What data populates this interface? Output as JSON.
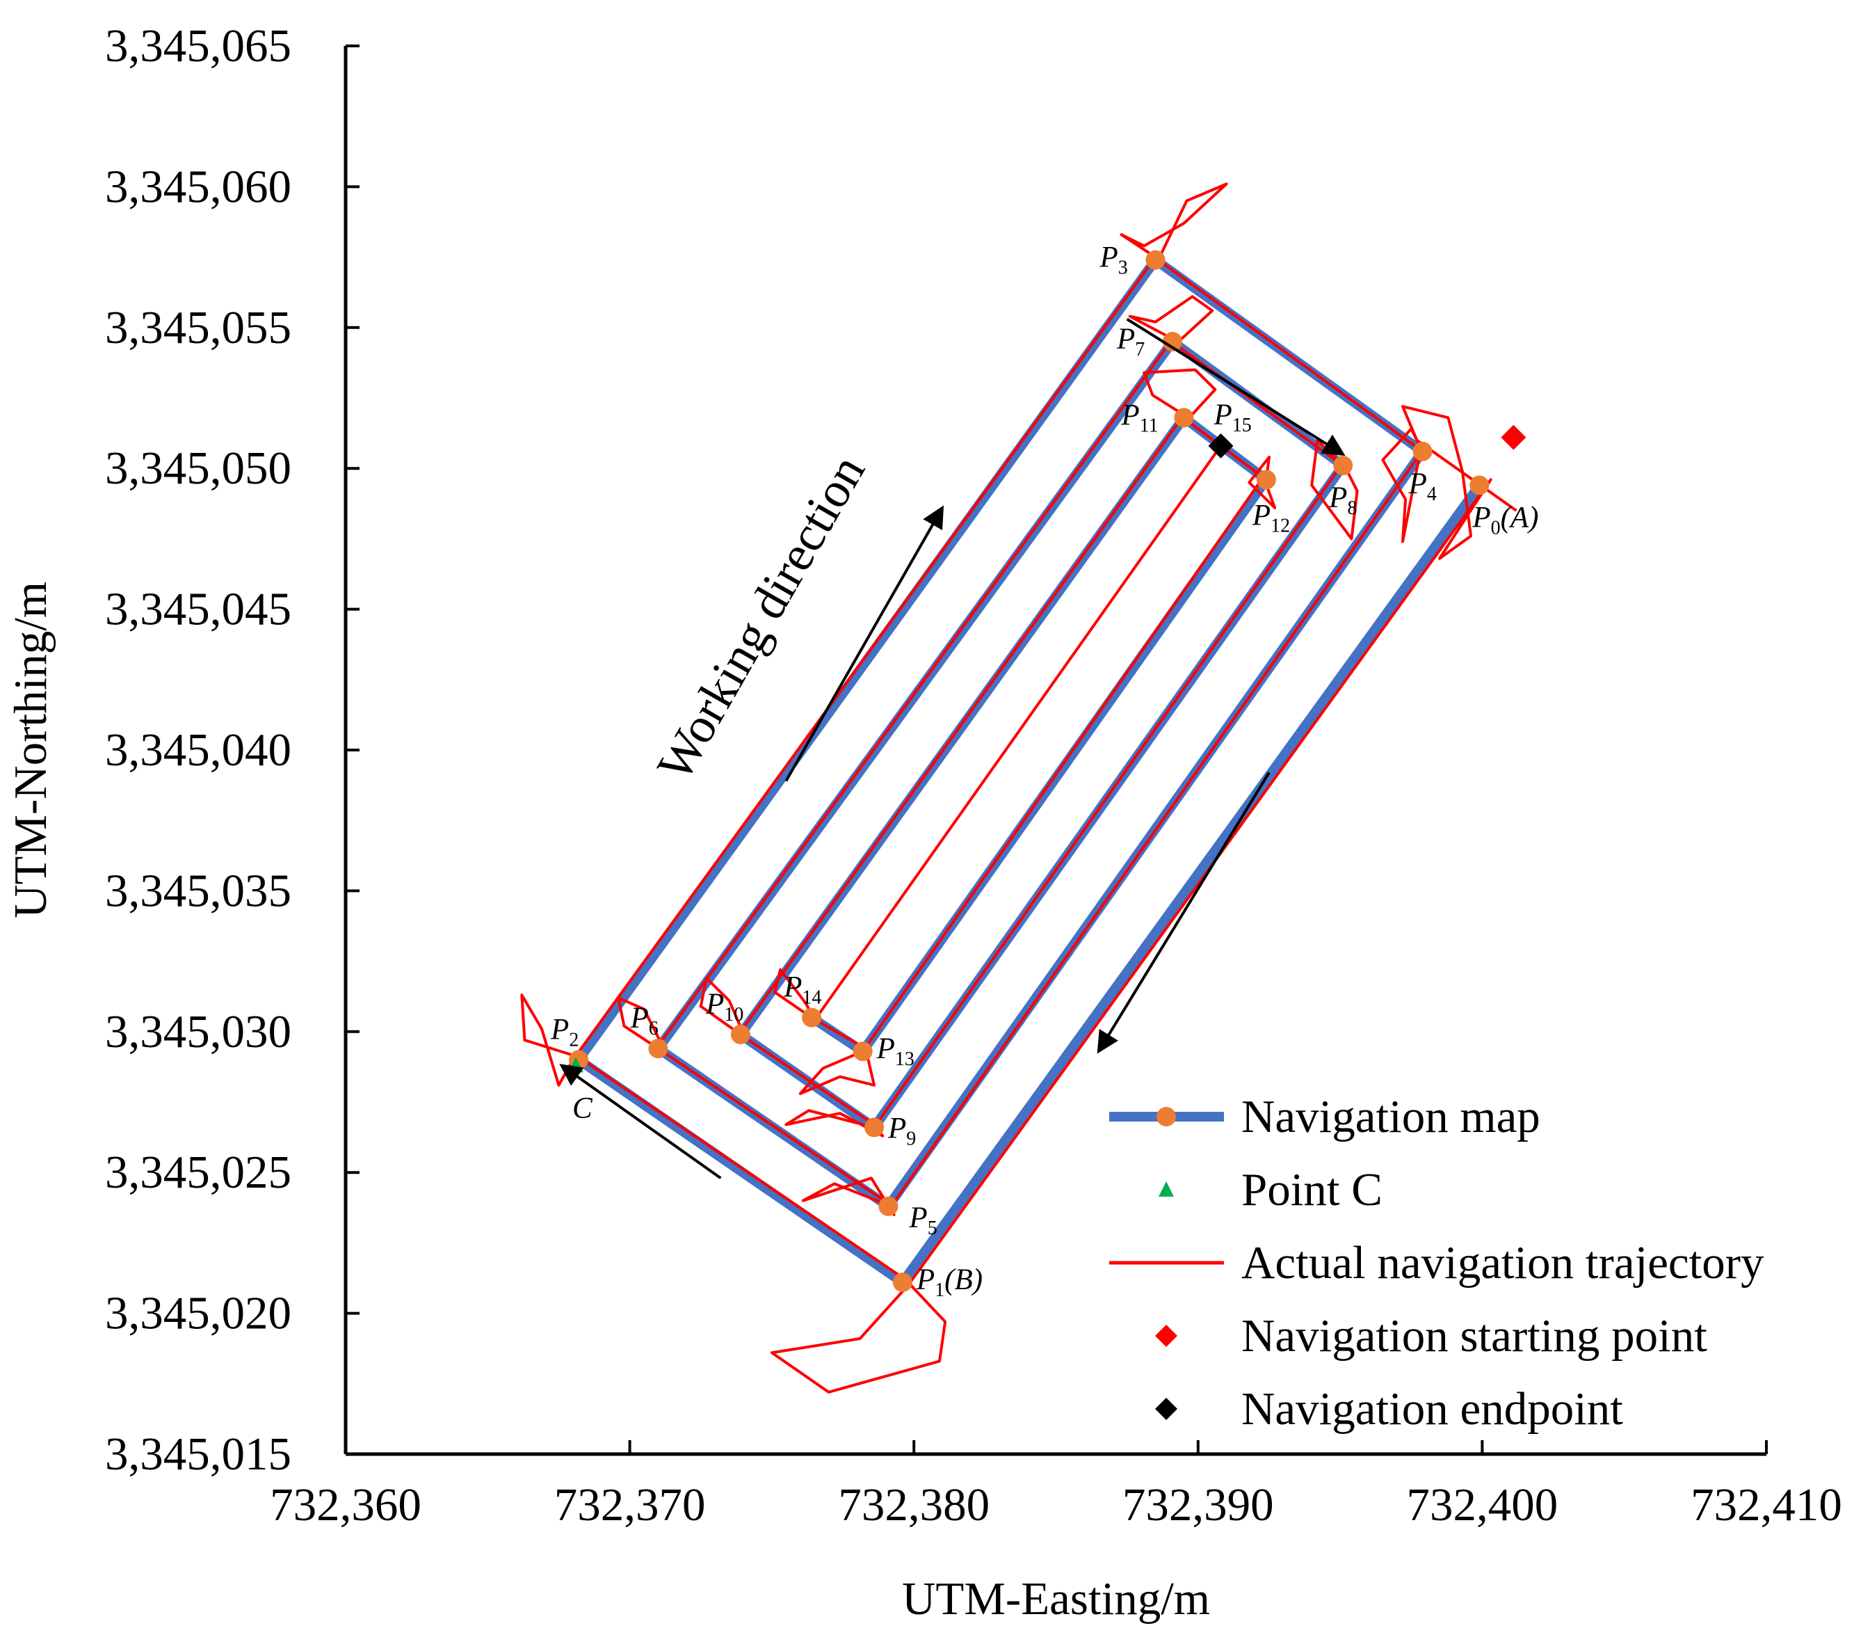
{
  "chart_data": {
    "type": "scatter",
    "title": "",
    "xlabel": "UTM-Easting/m",
    "ylabel": "UTM-Northing/m",
    "xlim": [
      732360,
      732410
    ],
    "ylim": [
      3345015,
      3345065
    ],
    "x_ticks": [
      732360,
      732370,
      732380,
      732390,
      732400,
      732410
    ],
    "x_tick_labels": [
      "732,360",
      "732,370",
      "732,380",
      "732,390",
      "732,400",
      "732,410"
    ],
    "y_ticks": [
      3345015,
      3345020,
      3345025,
      3345030,
      3345035,
      3345040,
      3345045,
      3345050,
      3345055,
      3345060,
      3345065
    ],
    "y_tick_labels": [
      "3,345,015",
      "3,345,020",
      "3,345,025",
      "3,345,030",
      "3,345,035",
      "3,345,040",
      "3,345,045",
      "3,345,050",
      "3,345,055",
      "3,345,060",
      "3,345,065"
    ],
    "grid": false,
    "legend_position": "bottom-right",
    "colors": {
      "navigation_map": "#4472c4",
      "waypoint": "#ed7d31",
      "trajectory": "#ff0000",
      "point_c": "#00b050",
      "start": "#ff0000",
      "end": "#000000"
    },
    "series": [
      {
        "name": "Navigation map",
        "kind": "line-markers",
        "points": [
          {
            "label": "P0",
            "suffix": "(A)",
            "x": 732399.9,
            "y": 3345049.4
          },
          {
            "label": "P1",
            "suffix": "(B)",
            "x": 732379.6,
            "y": 3345021.1
          },
          {
            "label": "P2",
            "suffix": "",
            "x": 732368.2,
            "y": 3345029.0
          },
          {
            "label": "P3",
            "suffix": "",
            "x": 732388.5,
            "y": 3345057.4
          },
          {
            "label": "P4",
            "suffix": "",
            "x": 732397.9,
            "y": 3345050.6
          },
          {
            "label": "P5",
            "suffix": "",
            "x": 732379.1,
            "y": 3345023.8
          },
          {
            "label": "P6",
            "suffix": "",
            "x": 732371.0,
            "y": 3345029.4
          },
          {
            "label": "P7",
            "suffix": "",
            "x": 732389.1,
            "y": 3345054.5
          },
          {
            "label": "P8",
            "suffix": "",
            "x": 732395.1,
            "y": 3345050.1
          },
          {
            "label": "P9",
            "suffix": "",
            "x": 732378.6,
            "y": 3345026.6
          },
          {
            "label": "P10",
            "suffix": "",
            "x": 732373.9,
            "y": 3345029.9
          },
          {
            "label": "P11",
            "suffix": "",
            "x": 732389.5,
            "y": 3345051.8
          },
          {
            "label": "P12",
            "suffix": "",
            "x": 732392.4,
            "y": 3345049.6
          },
          {
            "label": "P13",
            "suffix": "",
            "x": 732378.2,
            "y": 3345029.3
          },
          {
            "label": "P14",
            "suffix": "",
            "x": 732376.4,
            "y": 3345030.5
          },
          {
            "label": "P15",
            "suffix": "",
            "x": 732390.8,
            "y": 3345050.7
          }
        ]
      },
      {
        "name": "Point C",
        "kind": "triangle",
        "points": [
          {
            "label": "C",
            "x": 732368.1,
            "y": 3345028.8
          }
        ]
      },
      {
        "name": "Actual navigation trajectory",
        "kind": "line",
        "points": [
          [
            732401.2,
            3345048.5
          ],
          [
            732397.7,
            3345051.0
          ],
          [
            732397.2,
            3345052.2
          ],
          [
            732398.8,
            3345051.8
          ],
          [
            732399.3,
            3345049.9
          ],
          [
            732399.6,
            3345047.6
          ],
          [
            732398.5,
            3345046.8
          ],
          [
            732400.3,
            3345049.6
          ],
          [
            732379.8,
            3345021.0
          ],
          [
            732378.1,
            3345019.1
          ],
          [
            732375.0,
            3345018.6
          ],
          [
            732377.0,
            3345017.2
          ],
          [
            732380.9,
            3345018.3
          ],
          [
            732381.1,
            3345019.7
          ],
          [
            732379.7,
            3345021.2
          ],
          [
            732368.2,
            3345029.1
          ],
          [
            732366.3,
            3345029.7
          ],
          [
            732366.2,
            3345031.3
          ],
          [
            732366.9,
            3345030.1
          ],
          [
            732367.5,
            3345028.1
          ],
          [
            732368.0,
            3345029.0
          ],
          [
            732388.5,
            3345057.5
          ],
          [
            732387.3,
            3345058.3
          ],
          [
            732388.1,
            3345057.9
          ],
          [
            732389.5,
            3345058.7
          ],
          [
            732391.0,
            3345060.1
          ],
          [
            732389.6,
            3345059.5
          ],
          [
            732388.6,
            3345057.4
          ],
          [
            732397.9,
            3345050.6
          ],
          [
            732397.5,
            3345051.4
          ],
          [
            732396.5,
            3345050.3
          ],
          [
            732397.3,
            3345048.9
          ],
          [
            732397.2,
            3345047.4
          ],
          [
            732397.8,
            3345050.5
          ],
          [
            732379.2,
            3345023.8
          ],
          [
            732377.2,
            3345024.6
          ],
          [
            732376.1,
            3345024.0
          ],
          [
            732378.5,
            3345024.8
          ],
          [
            732379.3,
            3345023.5
          ],
          [
            732379.1,
            3345023.9
          ],
          [
            732371.0,
            3345029.4
          ],
          [
            732369.8,
            3345030.2
          ],
          [
            732369.6,
            3345031.2
          ],
          [
            732370.5,
            3345030.8
          ],
          [
            732371.3,
            3345029.2
          ],
          [
            732371.0,
            3345029.5
          ],
          [
            732389.1,
            3345054.6
          ],
          [
            732387.6,
            3345055.4
          ],
          [
            732388.5,
            3345055.2
          ],
          [
            732389.8,
            3345056.1
          ],
          [
            732390.5,
            3345055.6
          ],
          [
            732389.2,
            3345054.4
          ],
          [
            732395.1,
            3345050.1
          ],
          [
            732394.2,
            3345051.0
          ],
          [
            732394.0,
            3345049.4
          ],
          [
            732395.4,
            3345047.5
          ],
          [
            732395.6,
            3345049.2
          ],
          [
            732395.1,
            3345050.2
          ],
          [
            732378.6,
            3345026.6
          ],
          [
            732376.3,
            3345027.2
          ],
          [
            732375.5,
            3345026.7
          ],
          [
            732377.4,
            3345027.1
          ],
          [
            732378.9,
            3345026.3
          ],
          [
            732378.6,
            3345026.7
          ],
          [
            732373.9,
            3345029.9
          ],
          [
            732372.5,
            3345030.9
          ],
          [
            732372.7,
            3345031.9
          ],
          [
            732373.5,
            3345031.1
          ],
          [
            732374.1,
            3345029.7
          ],
          [
            732373.9,
            3345030.0
          ],
          [
            732389.5,
            3345051.9
          ],
          [
            732388.4,
            3345052.6
          ],
          [
            732388.1,
            3345053.4
          ],
          [
            732389.9,
            3345053.5
          ],
          [
            732390.6,
            3345052.8
          ],
          [
            732389.6,
            3345051.7
          ],
          [
            732392.4,
            3345049.6
          ],
          [
            732392.5,
            3345050.4
          ],
          [
            732391.8,
            3345049.5
          ],
          [
            732392.7,
            3345048.6
          ],
          [
            732392.3,
            3345049.7
          ],
          [
            732378.2,
            3345029.3
          ],
          [
            732376.8,
            3345028.7
          ],
          [
            732376.0,
            3345027.8
          ],
          [
            732377.4,
            3345028.4
          ],
          [
            732378.6,
            3345028.1
          ],
          [
            732378.3,
            3345029.4
          ],
          [
            732376.4,
            3345030.5
          ],
          [
            732375.1,
            3345031.4
          ],
          [
            732375.3,
            3345032.2
          ],
          [
            732376.2,
            3345031.0
          ],
          [
            732376.5,
            3345030.4
          ],
          [
            732390.8,
            3345050.8
          ]
        ]
      },
      {
        "name": "Navigation starting point",
        "kind": "diamond",
        "points": [
          {
            "x": 732401.1,
            "y": 3345051.1
          }
        ]
      },
      {
        "name": "Navigation endpoint",
        "kind": "diamond",
        "points": [
          {
            "x": 732390.8,
            "y": 3345050.8
          }
        ]
      }
    ],
    "annotations": [
      {
        "text": "Working direction",
        "kind": "rotated-text"
      },
      {
        "kind": "arrow",
        "from": [
          732387.5,
          3345055.3
        ],
        "to": [
          732395.1,
          3345050.5
        ]
      },
      {
        "kind": "arrow",
        "from": [
          732373.2,
          3345024.8
        ],
        "to": [
          732367.6,
          3345028.8
        ]
      },
      {
        "kind": "arrow",
        "from": [
          732392.5,
          3345039.2
        ],
        "to": [
          732386.5,
          3345029.3
        ]
      },
      {
        "kind": "arrow",
        "from": [
          732375.5,
          3345038.9
        ],
        "to": [
          732381.0,
          3345048.6
        ]
      }
    ]
  }
}
